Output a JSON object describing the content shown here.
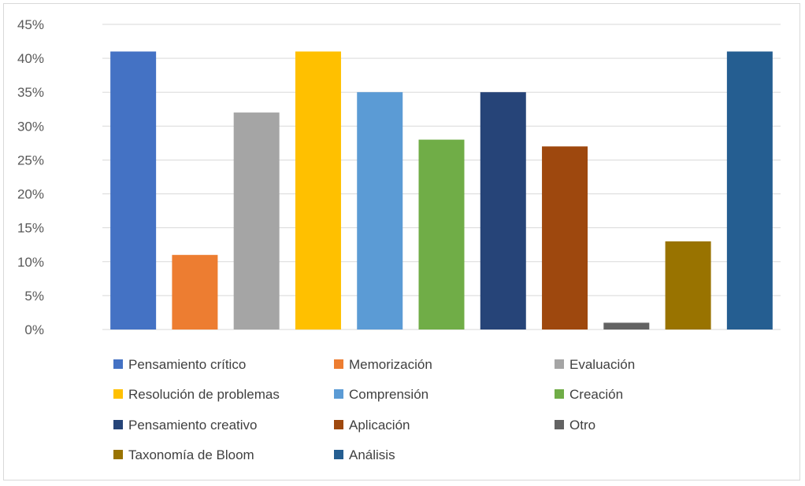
{
  "chart_data": {
    "type": "bar",
    "title": "",
    "xlabel": "",
    "ylabel": "",
    "ylim": [
      0,
      45
    ],
    "y_ticks": [
      0,
      5,
      10,
      15,
      20,
      25,
      30,
      35,
      40,
      45
    ],
    "y_tick_labels": [
      "0%",
      "5%",
      "10%",
      "15%",
      "20%",
      "25%",
      "30%",
      "35%",
      "40%",
      "45%"
    ],
    "grid": true,
    "legend_position": "bottom",
    "categories": [
      "Pensamiento crítico",
      "Memorización",
      "Evaluación",
      "Resolución de problemas",
      "Comprensión",
      "Creación",
      "Pensamiento creativo",
      "Aplicación",
      "Otro",
      "Taxonomía de Bloom",
      "Análisis"
    ],
    "values": [
      41,
      11,
      32,
      41,
      35,
      28,
      35,
      27,
      1,
      13,
      41
    ],
    "colors": [
      "#4472c4",
      "#ed7d31",
      "#a5a5a5",
      "#ffc000",
      "#5b9bd5",
      "#70ad47",
      "#264478",
      "#9e480e",
      "#636363",
      "#997300",
      "#255e91"
    ]
  }
}
